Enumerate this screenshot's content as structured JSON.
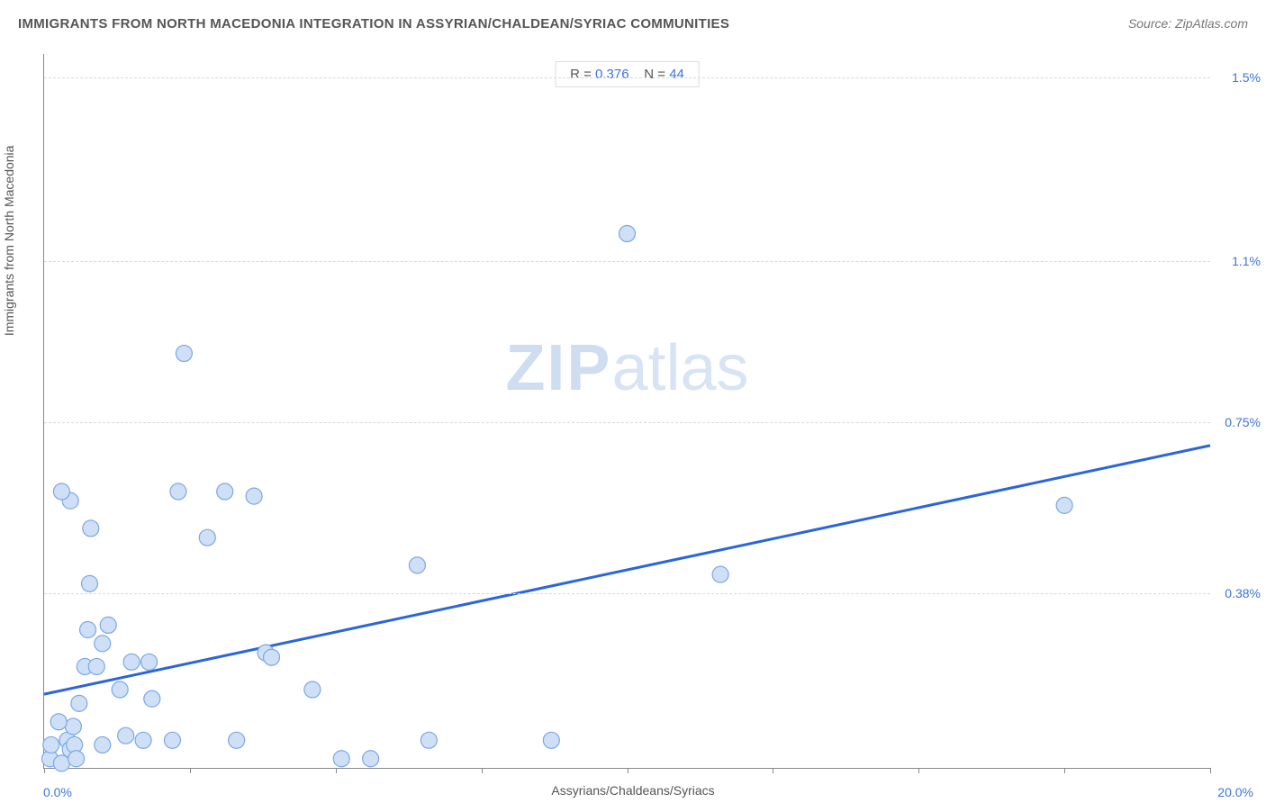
{
  "header": {
    "title": "IMMIGRANTS FROM NORTH MACEDONIA INTEGRATION IN ASSYRIAN/CHALDEAN/SYRIAC COMMUNITIES",
    "source_prefix": "Source: ",
    "source_name": "ZipAtlas.com"
  },
  "stats": {
    "r_label": "R = ",
    "r_value": "0.376",
    "n_label": "N = ",
    "n_value": "44"
  },
  "watermark": {
    "zip": "ZIP",
    "atlas": "atlas"
  },
  "chart": {
    "type": "scatter",
    "xlabel": "Assyrians/Chaldeans/Syriacs",
    "ylabel": "Immigrants from North Macedonia",
    "xlim": [
      0.0,
      20.0
    ],
    "ylim": [
      0.0,
      1.55
    ],
    "x_min_label": "0.0%",
    "x_max_label": "20.0%",
    "y_ticks": [
      {
        "value": 0.38,
        "label": "0.38%"
      },
      {
        "value": 0.75,
        "label": "0.75%"
      },
      {
        "value": 1.1,
        "label": "1.1%"
      },
      {
        "value": 1.5,
        "label": "1.5%"
      }
    ],
    "x_tick_values": [
      0,
      2.5,
      5.0,
      7.5,
      10.0,
      12.5,
      15.0,
      17.5,
      20.0
    ],
    "background_color": "#ffffff",
    "grid_color": "#d8d8d8",
    "axis_color": "#888888",
    "marker_fill": "#cfe0f6",
    "marker_stroke": "#7ba7e6",
    "marker_radius": 9,
    "line_color": "#2b66d9",
    "line_width": 3,
    "trend_line": {
      "x1": 0.0,
      "y1": 0.16,
      "x2": 20.0,
      "y2": 0.7
    },
    "points": [
      {
        "x": 0.1,
        "y": 0.02
      },
      {
        "x": 0.12,
        "y": 0.05
      },
      {
        "x": 0.3,
        "y": 0.01
      },
      {
        "x": 0.4,
        "y": 0.06
      },
      {
        "x": 0.45,
        "y": 0.04
      },
      {
        "x": 0.5,
        "y": 0.09
      },
      {
        "x": 0.52,
        "y": 0.05
      },
      {
        "x": 0.6,
        "y": 0.14
      },
      {
        "x": 1.0,
        "y": 0.05
      },
      {
        "x": 0.7,
        "y": 0.22
      },
      {
        "x": 0.75,
        "y": 0.3
      },
      {
        "x": 0.78,
        "y": 0.4
      },
      {
        "x": 0.8,
        "y": 0.52
      },
      {
        "x": 0.45,
        "y": 0.58
      },
      {
        "x": 0.3,
        "y": 0.6
      },
      {
        "x": 0.9,
        "y": 0.22
      },
      {
        "x": 1.0,
        "y": 0.27
      },
      {
        "x": 1.1,
        "y": 0.31
      },
      {
        "x": 1.3,
        "y": 0.17
      },
      {
        "x": 1.4,
        "y": 0.07
      },
      {
        "x": 1.7,
        "y": 0.06
      },
      {
        "x": 1.8,
        "y": 0.23
      },
      {
        "x": 1.85,
        "y": 0.15
      },
      {
        "x": 2.2,
        "y": 0.06
      },
      {
        "x": 2.3,
        "y": 0.6
      },
      {
        "x": 2.4,
        "y": 0.9
      },
      {
        "x": 2.8,
        "y": 0.5
      },
      {
        "x": 3.1,
        "y": 0.6
      },
      {
        "x": 3.3,
        "y": 0.06
      },
      {
        "x": 3.6,
        "y": 0.59
      },
      {
        "x": 3.8,
        "y": 0.25
      },
      {
        "x": 3.9,
        "y": 0.24
      },
      {
        "x": 4.6,
        "y": 0.17
      },
      {
        "x": 5.1,
        "y": 0.02
      },
      {
        "x": 5.6,
        "y": 0.02
      },
      {
        "x": 6.4,
        "y": 0.44
      },
      {
        "x": 6.6,
        "y": 0.06
      },
      {
        "x": 8.7,
        "y": 0.06
      },
      {
        "x": 10.0,
        "y": 1.16
      },
      {
        "x": 11.6,
        "y": 0.42
      },
      {
        "x": 17.5,
        "y": 0.57
      },
      {
        "x": 0.25,
        "y": 0.1
      },
      {
        "x": 0.55,
        "y": 0.02
      },
      {
        "x": 1.5,
        "y": 0.23
      }
    ]
  }
}
